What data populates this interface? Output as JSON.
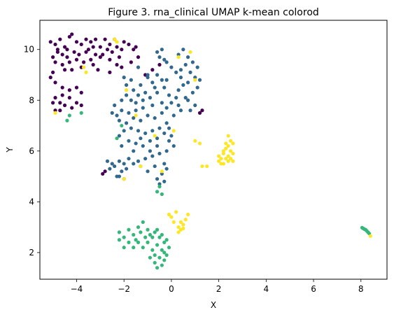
{
  "chart_data": {
    "type": "scatter",
    "title": "Figure 3. rna_clinical UMAP k-mean colorod",
    "xlabel": "X",
    "ylabel": "Y",
    "xlim": [
      -5.55,
      9.1
    ],
    "ylim": [
      0.95,
      11.15
    ],
    "x_ticks": [
      -4,
      -2,
      0,
      2,
      4,
      6,
      8
    ],
    "y_ticks": [
      2,
      4,
      6,
      8,
      10
    ],
    "grid": false,
    "legend": "none",
    "colors": {
      "purple": "#440154",
      "blue": "#31688e",
      "green": "#35b779",
      "yellow": "#fde725"
    },
    "series": [
      {
        "color": "#440154",
        "points": [
          [
            -5.1,
            10.3
          ],
          [
            -4.9,
            10.2
          ],
          [
            -4.7,
            10.4
          ],
          [
            -4.5,
            10.1
          ],
          [
            -4.3,
            10.5
          ],
          [
            -4.2,
            10.6
          ],
          [
            -4.0,
            10.3
          ],
          [
            -3.8,
            10.2
          ],
          [
            -3.6,
            10.4
          ],
          [
            -3.5,
            10.0
          ],
          [
            -3.4,
            10.3
          ],
          [
            -3.3,
            10.1
          ],
          [
            -3.6,
            9.9
          ],
          [
            -3.9,
            9.8
          ],
          [
            -4.1,
            9.9
          ],
          [
            -4.4,
            9.7
          ],
          [
            -4.6,
            9.8
          ],
          [
            -4.8,
            9.9
          ],
          [
            -5.0,
            9.7
          ],
          [
            -4.9,
            9.5
          ],
          [
            -4.6,
            9.4
          ],
          [
            -4.3,
            9.5
          ],
          [
            -4.0,
            9.6
          ],
          [
            -3.7,
            9.5
          ],
          [
            -3.4,
            9.6
          ],
          [
            -3.2,
            9.8
          ],
          [
            -3.0,
            9.7
          ],
          [
            -3.8,
            9.3
          ],
          [
            -4.2,
            9.2
          ],
          [
            -4.5,
            9.2
          ],
          [
            -5.0,
            9.1
          ],
          [
            -5.1,
            8.9
          ],
          [
            -4.9,
            8.7
          ],
          [
            -4.6,
            8.5
          ],
          [
            -4.3,
            8.4
          ],
          [
            -4.0,
            8.5
          ],
          [
            -3.8,
            8.3
          ],
          [
            -4.6,
            8.2
          ],
          [
            -4.9,
            8.1
          ],
          [
            -5.0,
            7.9
          ],
          [
            -4.7,
            7.9
          ],
          [
            -4.5,
            7.8
          ],
          [
            -4.2,
            7.7
          ],
          [
            -4.0,
            7.9
          ],
          [
            -3.8,
            7.8
          ],
          [
            -4.3,
            8.1
          ],
          [
            -4.7,
            7.6
          ],
          [
            -4.9,
            7.6
          ],
          [
            -2.8,
            10.4
          ],
          [
            -2.6,
            10.2
          ],
          [
            -2.4,
            10.4
          ],
          [
            -2.7,
            10.0
          ],
          [
            -2.5,
            9.9
          ],
          [
            -2.3,
            10.1
          ],
          [
            -2.2,
            9.7
          ],
          [
            -2.6,
            9.6
          ],
          [
            -2.1,
            10.0
          ],
          [
            -2.0,
            10.3
          ],
          [
            -1.8,
            10.2
          ],
          [
            -1.6,
            10.0
          ],
          [
            -1.5,
            10.1
          ],
          [
            -2.3,
            9.4
          ],
          [
            -2.1,
            9.3
          ],
          [
            -2.6,
            9.1
          ],
          [
            -1.7,
            9.5
          ],
          [
            -1.4,
            9.7
          ],
          [
            -3.2,
            10.4
          ],
          [
            -3.0,
            10.1
          ],
          [
            -2.9,
            9.8
          ],
          [
            -4.4,
            10.0
          ],
          [
            -4.8,
            10.0
          ],
          [
            -3.3,
            9.4
          ],
          [
            -3.1,
            9.2
          ],
          [
            -1.1,
            9.0
          ],
          [
            -0.8,
            9.2
          ],
          [
            -0.5,
            9.4
          ],
          [
            1.3,
            7.6
          ],
          [
            1.2,
            7.5
          ],
          [
            -2.8,
            5.2
          ],
          [
            -2.9,
            5.1
          ]
        ]
      },
      {
        "color": "#31688e",
        "points": [
          [
            -1.4,
            9.3
          ],
          [
            -1.0,
            9.0
          ],
          [
            -0.8,
            8.7
          ],
          [
            -0.6,
            9.0
          ],
          [
            -0.4,
            8.8
          ],
          [
            -1.3,
            8.6
          ],
          [
            -1.6,
            8.4
          ],
          [
            -1.9,
            8.2
          ],
          [
            -2.1,
            8.0
          ],
          [
            -1.7,
            8.0
          ],
          [
            -1.4,
            8.2
          ],
          [
            -1.1,
            8.3
          ],
          [
            -0.9,
            8.1
          ],
          [
            -0.6,
            8.3
          ],
          [
            -0.3,
            8.5
          ],
          [
            -0.1,
            8.2
          ],
          [
            -0.4,
            7.9
          ],
          [
            -0.8,
            7.8
          ],
          [
            -1.2,
            7.7
          ],
          [
            -1.5,
            7.6
          ],
          [
            -1.8,
            7.5
          ],
          [
            -2.1,
            7.6
          ],
          [
            -2.3,
            7.4
          ],
          [
            -2.2,
            7.2
          ],
          [
            -1.9,
            7.1
          ],
          [
            -1.6,
            7.3
          ],
          [
            -1.3,
            7.2
          ],
          [
            -1.0,
            7.4
          ],
          [
            -0.7,
            7.3
          ],
          [
            -0.4,
            7.5
          ],
          [
            -0.2,
            7.7
          ],
          [
            0.0,
            7.9
          ],
          [
            0.2,
            8.1
          ],
          [
            0.3,
            7.8
          ],
          [
            0.1,
            7.4
          ],
          [
            -0.2,
            7.1
          ],
          [
            -0.5,
            6.9
          ],
          [
            -0.8,
            6.8
          ],
          [
            -1.1,
            6.7
          ],
          [
            -1.4,
            6.8
          ],
          [
            -1.7,
            6.9
          ],
          [
            -2.0,
            6.8
          ],
          [
            -2.2,
            6.6
          ],
          [
            -1.8,
            6.4
          ],
          [
            -1.5,
            6.3
          ],
          [
            -1.2,
            6.2
          ],
          [
            -0.9,
            6.4
          ],
          [
            -0.6,
            6.5
          ],
          [
            -0.3,
            6.7
          ],
          [
            -0.1,
            6.4
          ],
          [
            0.1,
            6.2
          ],
          [
            -0.2,
            6.0
          ],
          [
            -0.5,
            5.9
          ],
          [
            -0.8,
            5.8
          ],
          [
            -1.1,
            5.7
          ],
          [
            -1.4,
            5.6
          ],
          [
            -0.3,
            5.5
          ],
          [
            -0.2,
            5.3
          ],
          [
            -0.4,
            5.1
          ],
          [
            -0.6,
            4.9
          ],
          [
            -0.5,
            4.7
          ],
          [
            -0.3,
            4.8
          ],
          [
            -0.7,
            5.4
          ],
          [
            -1.0,
            5.2
          ],
          [
            -1.3,
            5.4
          ],
          [
            -2.4,
            5.4
          ],
          [
            -2.6,
            5.3
          ],
          [
            -2.2,
            5.6
          ],
          [
            -2.0,
            5.5
          ],
          [
            -1.8,
            5.7
          ],
          [
            -2.1,
            5.2
          ],
          [
            -2.3,
            5.0
          ],
          [
            -2.5,
            5.5
          ],
          [
            -1.9,
            5.3
          ],
          [
            -1.6,
            5.5
          ],
          [
            -2.7,
            5.6
          ],
          [
            -2.0,
            4.9
          ],
          [
            -2.2,
            5.0
          ],
          [
            0.5,
            10.0
          ],
          [
            0.3,
            9.8
          ],
          [
            0.7,
            9.7
          ],
          [
            0.9,
            9.5
          ],
          [
            1.1,
            9.3
          ],
          [
            0.6,
            9.4
          ],
          [
            0.4,
            9.2
          ],
          [
            0.8,
            9.1
          ],
          [
            1.0,
            8.9
          ],
          [
            0.7,
            8.7
          ],
          [
            0.4,
            8.9
          ],
          [
            0.2,
            9.1
          ],
          [
            1.1,
            8.5
          ],
          [
            0.9,
            8.3
          ],
          [
            0.6,
            8.1
          ],
          [
            0.3,
            8.4
          ],
          [
            1.2,
            8.8
          ],
          [
            0.5,
            8.6
          ],
          [
            0.0,
            9.3
          ],
          [
            -0.2,
            9.5
          ],
          [
            -0.6,
            9.9
          ],
          [
            -0.4,
            10.0
          ],
          [
            -0.5,
            9.7
          ],
          [
            -0.3,
            9.6
          ],
          [
            1.0,
            7.8
          ],
          [
            0.8,
            7.6
          ],
          [
            0.7,
            8.0
          ],
          [
            0.4,
            7.6
          ],
          [
            -1.9,
            8.6
          ],
          [
            -2.0,
            8.9
          ],
          [
            -1.7,
            8.8
          ],
          [
            -1.2,
            8.0
          ],
          [
            -0.1,
            6.9
          ],
          [
            0.0,
            6.6
          ],
          [
            -1.6,
            6.0
          ],
          [
            -2.1,
            6.2
          ],
          [
            -0.9,
            6.0
          ],
          [
            -0.6,
            6.2
          ],
          [
            -1.0,
            8.9
          ],
          [
            -0.7,
            8.5
          ],
          [
            -0.2,
            8.8
          ],
          [
            -1.5,
            7.9
          ],
          [
            -1.3,
            6.5
          ],
          [
            -2.4,
            7.8
          ],
          [
            -2.5,
            7.5
          ]
        ]
      },
      {
        "color": "#35b779",
        "points": [
          [
            -2.2,
            2.8
          ],
          [
            -2.0,
            2.6
          ],
          [
            -1.8,
            2.9
          ],
          [
            -1.6,
            2.7
          ],
          [
            -1.4,
            3.0
          ],
          [
            -1.2,
            3.2
          ],
          [
            -1.0,
            2.9
          ],
          [
            -0.8,
            2.6
          ],
          [
            -0.6,
            2.9
          ],
          [
            -0.4,
            2.7
          ],
          [
            -0.2,
            2.5
          ],
          [
            -0.1,
            2.2
          ],
          [
            -0.3,
            2.0
          ],
          [
            -0.5,
            1.8
          ],
          [
            -0.7,
            1.6
          ],
          [
            -0.9,
            1.8
          ],
          [
            -0.6,
            2.3
          ],
          [
            -0.8,
            2.1
          ],
          [
            -1.0,
            2.4
          ],
          [
            -1.2,
            2.2
          ],
          [
            -1.4,
            2.4
          ],
          [
            -1.6,
            2.2
          ],
          [
            -1.8,
            2.4
          ],
          [
            -2.0,
            2.2
          ],
          [
            -2.2,
            2.5
          ],
          [
            -0.4,
            1.5
          ],
          [
            -0.6,
            1.4
          ],
          [
            -0.3,
            1.7
          ],
          [
            -0.2,
            1.9
          ],
          [
            -0.9,
            2.7
          ],
          [
            -1.1,
            2.6
          ],
          [
            -0.7,
            2.8
          ],
          [
            -1.3,
            2.8
          ],
          [
            -1.5,
            2.5
          ],
          [
            -0.5,
            2.6
          ],
          [
            -0.3,
            2.4
          ],
          [
            -0.7,
            1.9
          ],
          [
            -0.4,
            2.1
          ],
          [
            -0.6,
            4.4
          ],
          [
            -0.5,
            4.6
          ],
          [
            -0.4,
            4.3
          ],
          [
            -2.3,
            6.5
          ],
          [
            -4.4,
            7.2
          ],
          [
            -4.3,
            7.4
          ],
          [
            -2.1,
            7.0
          ],
          [
            -3.8,
            7.5
          ],
          [
            8.1,
            2.95
          ],
          [
            8.2,
            2.9
          ],
          [
            8.25,
            2.85
          ],
          [
            8.3,
            2.8
          ],
          [
            8.35,
            2.75
          ],
          [
            8.15,
            2.92
          ],
          [
            8.05,
            2.98
          ]
        ]
      },
      {
        "color": "#fde725",
        "points": [
          [
            2.1,
            5.7
          ],
          [
            2.2,
            5.9
          ],
          [
            2.3,
            6.1
          ],
          [
            2.4,
            5.8
          ],
          [
            2.5,
            6.0
          ],
          [
            2.2,
            5.5
          ],
          [
            2.4,
            5.6
          ],
          [
            2.6,
            5.9
          ],
          [
            2.3,
            6.3
          ],
          [
            2.5,
            6.4
          ],
          [
            2.4,
            6.6
          ],
          [
            2.6,
            6.3
          ],
          [
            2.0,
            5.8
          ],
          [
            2.1,
            5.5
          ],
          [
            2.3,
            5.7
          ],
          [
            2.5,
            5.7
          ],
          [
            2.6,
            5.6
          ],
          [
            2.2,
            6.0
          ],
          [
            2.4,
            6.2
          ],
          [
            2.0,
            5.6
          ],
          [
            1.3,
            5.4
          ],
          [
            1.5,
            5.4
          ],
          [
            1.0,
            6.4
          ],
          [
            1.2,
            6.3
          ],
          [
            0.0,
            3.4
          ],
          [
            0.1,
            3.2
          ],
          [
            0.3,
            3.0
          ],
          [
            0.4,
            2.9
          ],
          [
            0.5,
            3.1
          ],
          [
            0.6,
            3.3
          ],
          [
            0.7,
            3.5
          ],
          [
            0.2,
            3.6
          ],
          [
            0.4,
            3.2
          ],
          [
            0.3,
            2.8
          ],
          [
            -0.1,
            3.5
          ],
          [
            0.5,
            2.95
          ],
          [
            8.4,
            2.65
          ],
          [
            -3.6,
            9.1
          ],
          [
            -3.7,
            9.3
          ],
          [
            -2.4,
            10.4
          ],
          [
            -2.3,
            10.3
          ],
          [
            0.3,
            9.7
          ],
          [
            1.0,
            8.8
          ],
          [
            0.1,
            6.8
          ],
          [
            -0.4,
            5.2
          ],
          [
            -1.3,
            5.4
          ],
          [
            -1.9,
            8.4
          ],
          [
            -1.5,
            7.4
          ],
          [
            -0.7,
            6.6
          ],
          [
            -4.9,
            7.5
          ],
          [
            -2.0,
            4.9
          ],
          [
            0.8,
            9.9
          ]
        ]
      }
    ]
  }
}
